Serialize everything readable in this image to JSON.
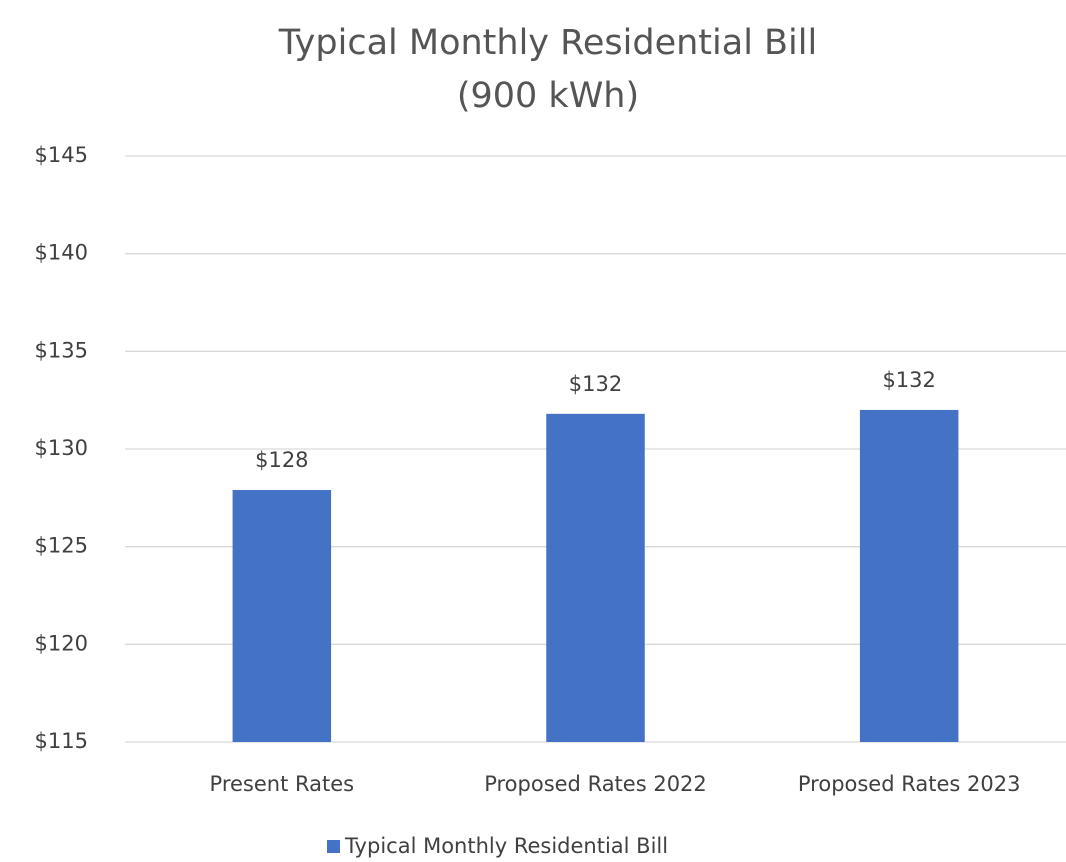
{
  "chart_data": {
    "type": "bar",
    "title": [
      "Typical Monthly Residential Bill",
      "(900 kWh)"
    ],
    "categories": [
      "Present Rates",
      "Proposed Rates 2022",
      "Proposed Rates 2023"
    ],
    "series": [
      {
        "name": "Typical Monthly Residential Bill",
        "color": "#4472c4",
        "values": [
          127.9,
          131.8,
          132.0
        ],
        "value_labels": [
          "$128",
          "$132",
          "$132"
        ]
      }
    ],
    "ylim": [
      115,
      145
    ],
    "yticks": [
      {
        "value": 115,
        "label": "$115"
      },
      {
        "value": 120,
        "label": "$120"
      },
      {
        "value": 125,
        "label": "$125"
      },
      {
        "value": 130,
        "label": "$130"
      },
      {
        "value": 135,
        "label": "$135"
      },
      {
        "value": 140,
        "label": "$140"
      },
      {
        "value": 145,
        "label": "$145"
      }
    ],
    "grid": true,
    "legend": "bottom"
  }
}
